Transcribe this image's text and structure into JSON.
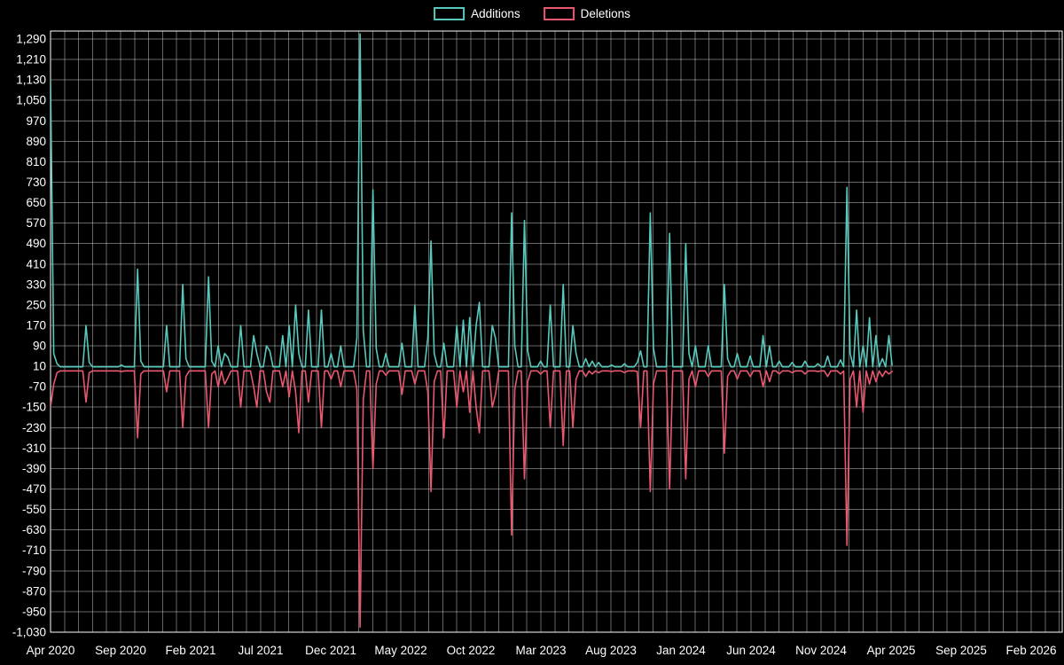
{
  "colors": {
    "background": "#000000",
    "grid": "#ffffff",
    "text": "#ffffff",
    "additions": "#58c9bd",
    "deletions": "#e9586f"
  },
  "legend": {
    "additions_label": "Additions",
    "deletions_label": "Deletions"
  },
  "chart_data": {
    "type": "line",
    "title": "",
    "legend_position": "top-center",
    "grid": true,
    "legend": [
      {
        "name": "Additions",
        "color": "#58c9bd"
      },
      {
        "name": "Deletions",
        "color": "#e9586f"
      }
    ],
    "x_axis": {
      "tick_labels": [
        "Apr 2020",
        "Sep 2020",
        "Feb 2021",
        "Jul 2021",
        "Dec 2021",
        "May 2022",
        "Oct 2022",
        "Mar 2023",
        "Aug 2023",
        "Jan 2024",
        "Jun 2024",
        "Nov 2024",
        "Apr 2025",
        "Sep 2025",
        "Feb 2026"
      ],
      "months_per_tick": 5,
      "months_total": 70
    },
    "y_axis": {
      "min": -1030,
      "max": 1290,
      "step": 80,
      "tick_format": "comma"
    },
    "series_resolution": "weekly",
    "data_end_week": 261,
    "baseline": {
      "additions": 8,
      "deletions": -8
    },
    "points_format": [
      "week",
      "additions",
      "deletions"
    ],
    "points": [
      [
        0,
        1130,
        -150
      ],
      [
        1,
        60,
        -60
      ],
      [
        2,
        20,
        -15
      ],
      [
        11,
        170,
        -130
      ],
      [
        12,
        25,
        -15
      ],
      [
        22,
        15,
        -10
      ],
      [
        27,
        390,
        -270
      ],
      [
        28,
        30,
        -20
      ],
      [
        36,
        170,
        -90
      ],
      [
        41,
        330,
        -230
      ],
      [
        42,
        40,
        -30
      ],
      [
        49,
        360,
        -230
      ],
      [
        50,
        30,
        -20
      ],
      [
        52,
        90,
        -70
      ],
      [
        54,
        60,
        -60
      ],
      [
        55,
        45,
        -35
      ],
      [
        59,
        170,
        -150
      ],
      [
        63,
        130,
        -70
      ],
      [
        64,
        60,
        -150
      ],
      [
        67,
        90,
        -90
      ],
      [
        68,
        70,
        -130
      ],
      [
        72,
        130,
        -70
      ],
      [
        74,
        170,
        -110
      ],
      [
        76,
        250,
        -90
      ],
      [
        77,
        60,
        -250
      ],
      [
        80,
        230,
        -130
      ],
      [
        84,
        230,
        -230
      ],
      [
        87,
        60,
        -40
      ],
      [
        90,
        90,
        -70
      ],
      [
        95,
        120,
        -80
      ],
      [
        96,
        1310,
        -1010
      ],
      [
        97,
        150,
        -120
      ],
      [
        100,
        700,
        -390
      ],
      [
        101,
        80,
        -60
      ],
      [
        104,
        60,
        -25
      ],
      [
        109,
        100,
        -100
      ],
      [
        113,
        250,
        -60
      ],
      [
        117,
        120,
        -90
      ],
      [
        118,
        500,
        -480
      ],
      [
        119,
        60,
        -50
      ],
      [
        122,
        100,
        -270
      ],
      [
        126,
        170,
        -150
      ],
      [
        128,
        190,
        -90
      ],
      [
        130,
        200,
        -170
      ],
      [
        132,
        170,
        -150
      ],
      [
        133,
        260,
        -250
      ],
      [
        137,
        170,
        -150
      ],
      [
        138,
        120,
        -100
      ],
      [
        143,
        610,
        -650
      ],
      [
        144,
        90,
        -80
      ],
      [
        147,
        580,
        -430
      ],
      [
        148,
        70,
        -50
      ],
      [
        152,
        30,
        -20
      ],
      [
        155,
        250,
        -230
      ],
      [
        159,
        330,
        -300
      ],
      [
        162,
        170,
        -230
      ],
      [
        163,
        60,
        -40
      ],
      [
        166,
        40,
        -30
      ],
      [
        168,
        30,
        -20
      ],
      [
        170,
        25,
        -15
      ],
      [
        174,
        15,
        -10
      ],
      [
        178,
        20,
        -15
      ],
      [
        182,
        25,
        -10
      ],
      [
        183,
        70,
        -230
      ],
      [
        186,
        610,
        -480
      ],
      [
        187,
        80,
        -60
      ],
      [
        192,
        530,
        -470
      ],
      [
        197,
        490,
        -430
      ],
      [
        198,
        60,
        -40
      ],
      [
        200,
        90,
        -70
      ],
      [
        204,
        90,
        -30
      ],
      [
        209,
        330,
        -330
      ],
      [
        210,
        40,
        -30
      ],
      [
        213,
        60,
        -40
      ],
      [
        217,
        50,
        -30
      ],
      [
        221,
        130,
        -70
      ],
      [
        223,
        90,
        -50
      ],
      [
        226,
        30,
        -20
      ],
      [
        230,
        25,
        -15
      ],
      [
        234,
        30,
        -20
      ],
      [
        238,
        20,
        -10
      ],
      [
        241,
        50,
        -30
      ],
      [
        245,
        35,
        -20
      ],
      [
        247,
        710,
        -690
      ],
      [
        248,
        60,
        -40
      ],
      [
        250,
        230,
        -150
      ],
      [
        252,
        90,
        -170
      ],
      [
        254,
        200,
        -60
      ],
      [
        256,
        130,
        -50
      ],
      [
        258,
        40,
        -30
      ],
      [
        260,
        130,
        -20
      ],
      [
        261,
        15,
        -10
      ]
    ]
  }
}
